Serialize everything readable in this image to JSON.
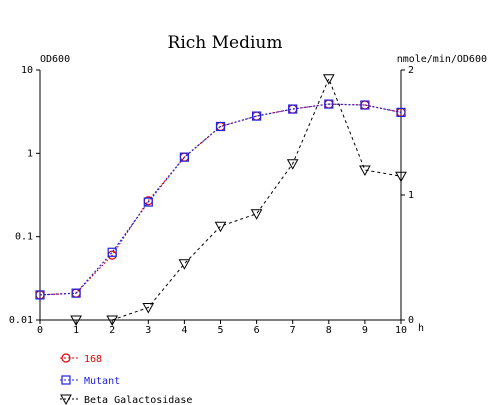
{
  "chart_data": {
    "type": "line",
    "title": "Rich Medium",
    "xlabel": "h",
    "ylabel_left": "OD600",
    "ylabel_right": "nmole/min/OD600",
    "x_ticks": [
      "0",
      "1",
      "2",
      "3",
      "4",
      "5",
      "6",
      "7",
      "8",
      "9",
      "10"
    ],
    "xlim": [
      0,
      10
    ],
    "y_left_scale": "log",
    "y_left_lim": [
      0.01,
      10
    ],
    "y_left_ticks": [
      "0.01",
      "0.1",
      "1",
      "10"
    ],
    "y_right_scale": "linear",
    "y_right_lim": [
      0,
      2
    ],
    "y_right_ticks": [
      "0",
      "1",
      "2"
    ],
    "grid": false,
    "legend_position": "bottom-left",
    "series": [
      {
        "name": "168",
        "axis": "left",
        "marker": "circle",
        "color": "#e00000",
        "x": [
          0,
          1,
          2,
          3,
          4,
          5,
          6,
          7,
          8,
          9,
          10
        ],
        "y": [
          0.02,
          0.021,
          0.06,
          0.27,
          0.9,
          2.1,
          2.8,
          3.4,
          3.9,
          3.8,
          3.1
        ]
      },
      {
        "name": "Mutant",
        "axis": "left",
        "marker": "square",
        "color": "#2020e0",
        "x": [
          0,
          1,
          2,
          3,
          4,
          5,
          6,
          7,
          8,
          9,
          10
        ],
        "y": [
          0.02,
          0.021,
          0.065,
          0.26,
          0.9,
          2.1,
          2.8,
          3.4,
          3.9,
          3.8,
          3.1
        ]
      },
      {
        "name": "Beta Galactosidase",
        "axis": "right",
        "marker": "triangle-down",
        "color": "#000000",
        "x": [
          1,
          2,
          3,
          4,
          5,
          6,
          7,
          8,
          9,
          10
        ],
        "y": [
          0.0,
          0.0,
          0.1,
          0.45,
          0.75,
          0.85,
          1.25,
          1.93,
          1.2,
          1.15
        ]
      }
    ]
  }
}
